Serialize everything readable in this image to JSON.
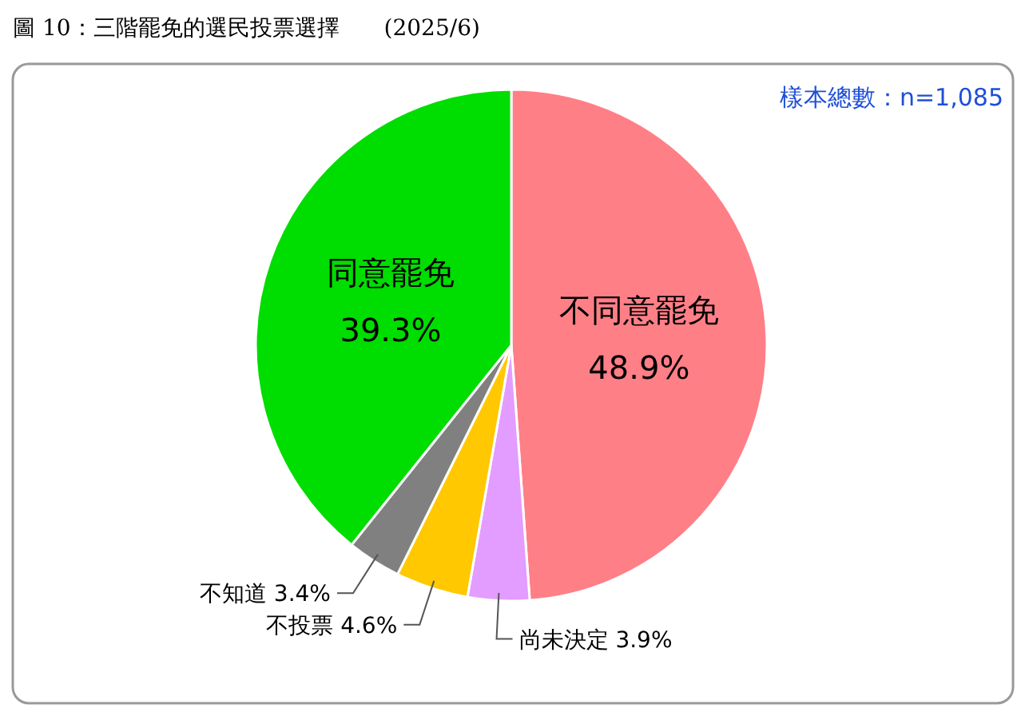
{
  "chart_data": {
    "type": "pie",
    "title": "圖 10：三階罷免的選民投票選擇　　(2025/6)",
    "annotations": [
      "樣本總數：n=1,085"
    ],
    "categories": [
      "不同意罷免",
      "尚未決定",
      "不投票",
      "不知道",
      "同意罷免"
    ],
    "values": [
      48.9,
      3.9,
      4.6,
      3.4,
      39.3
    ],
    "colors": [
      "#ff7f87",
      "#e39cff",
      "#ffc800",
      "#808080",
      "#00dd00"
    ],
    "value_labels": [
      "48.9%",
      "3.9%",
      "4.6%",
      "3.4%",
      "39.3%"
    ]
  }
}
